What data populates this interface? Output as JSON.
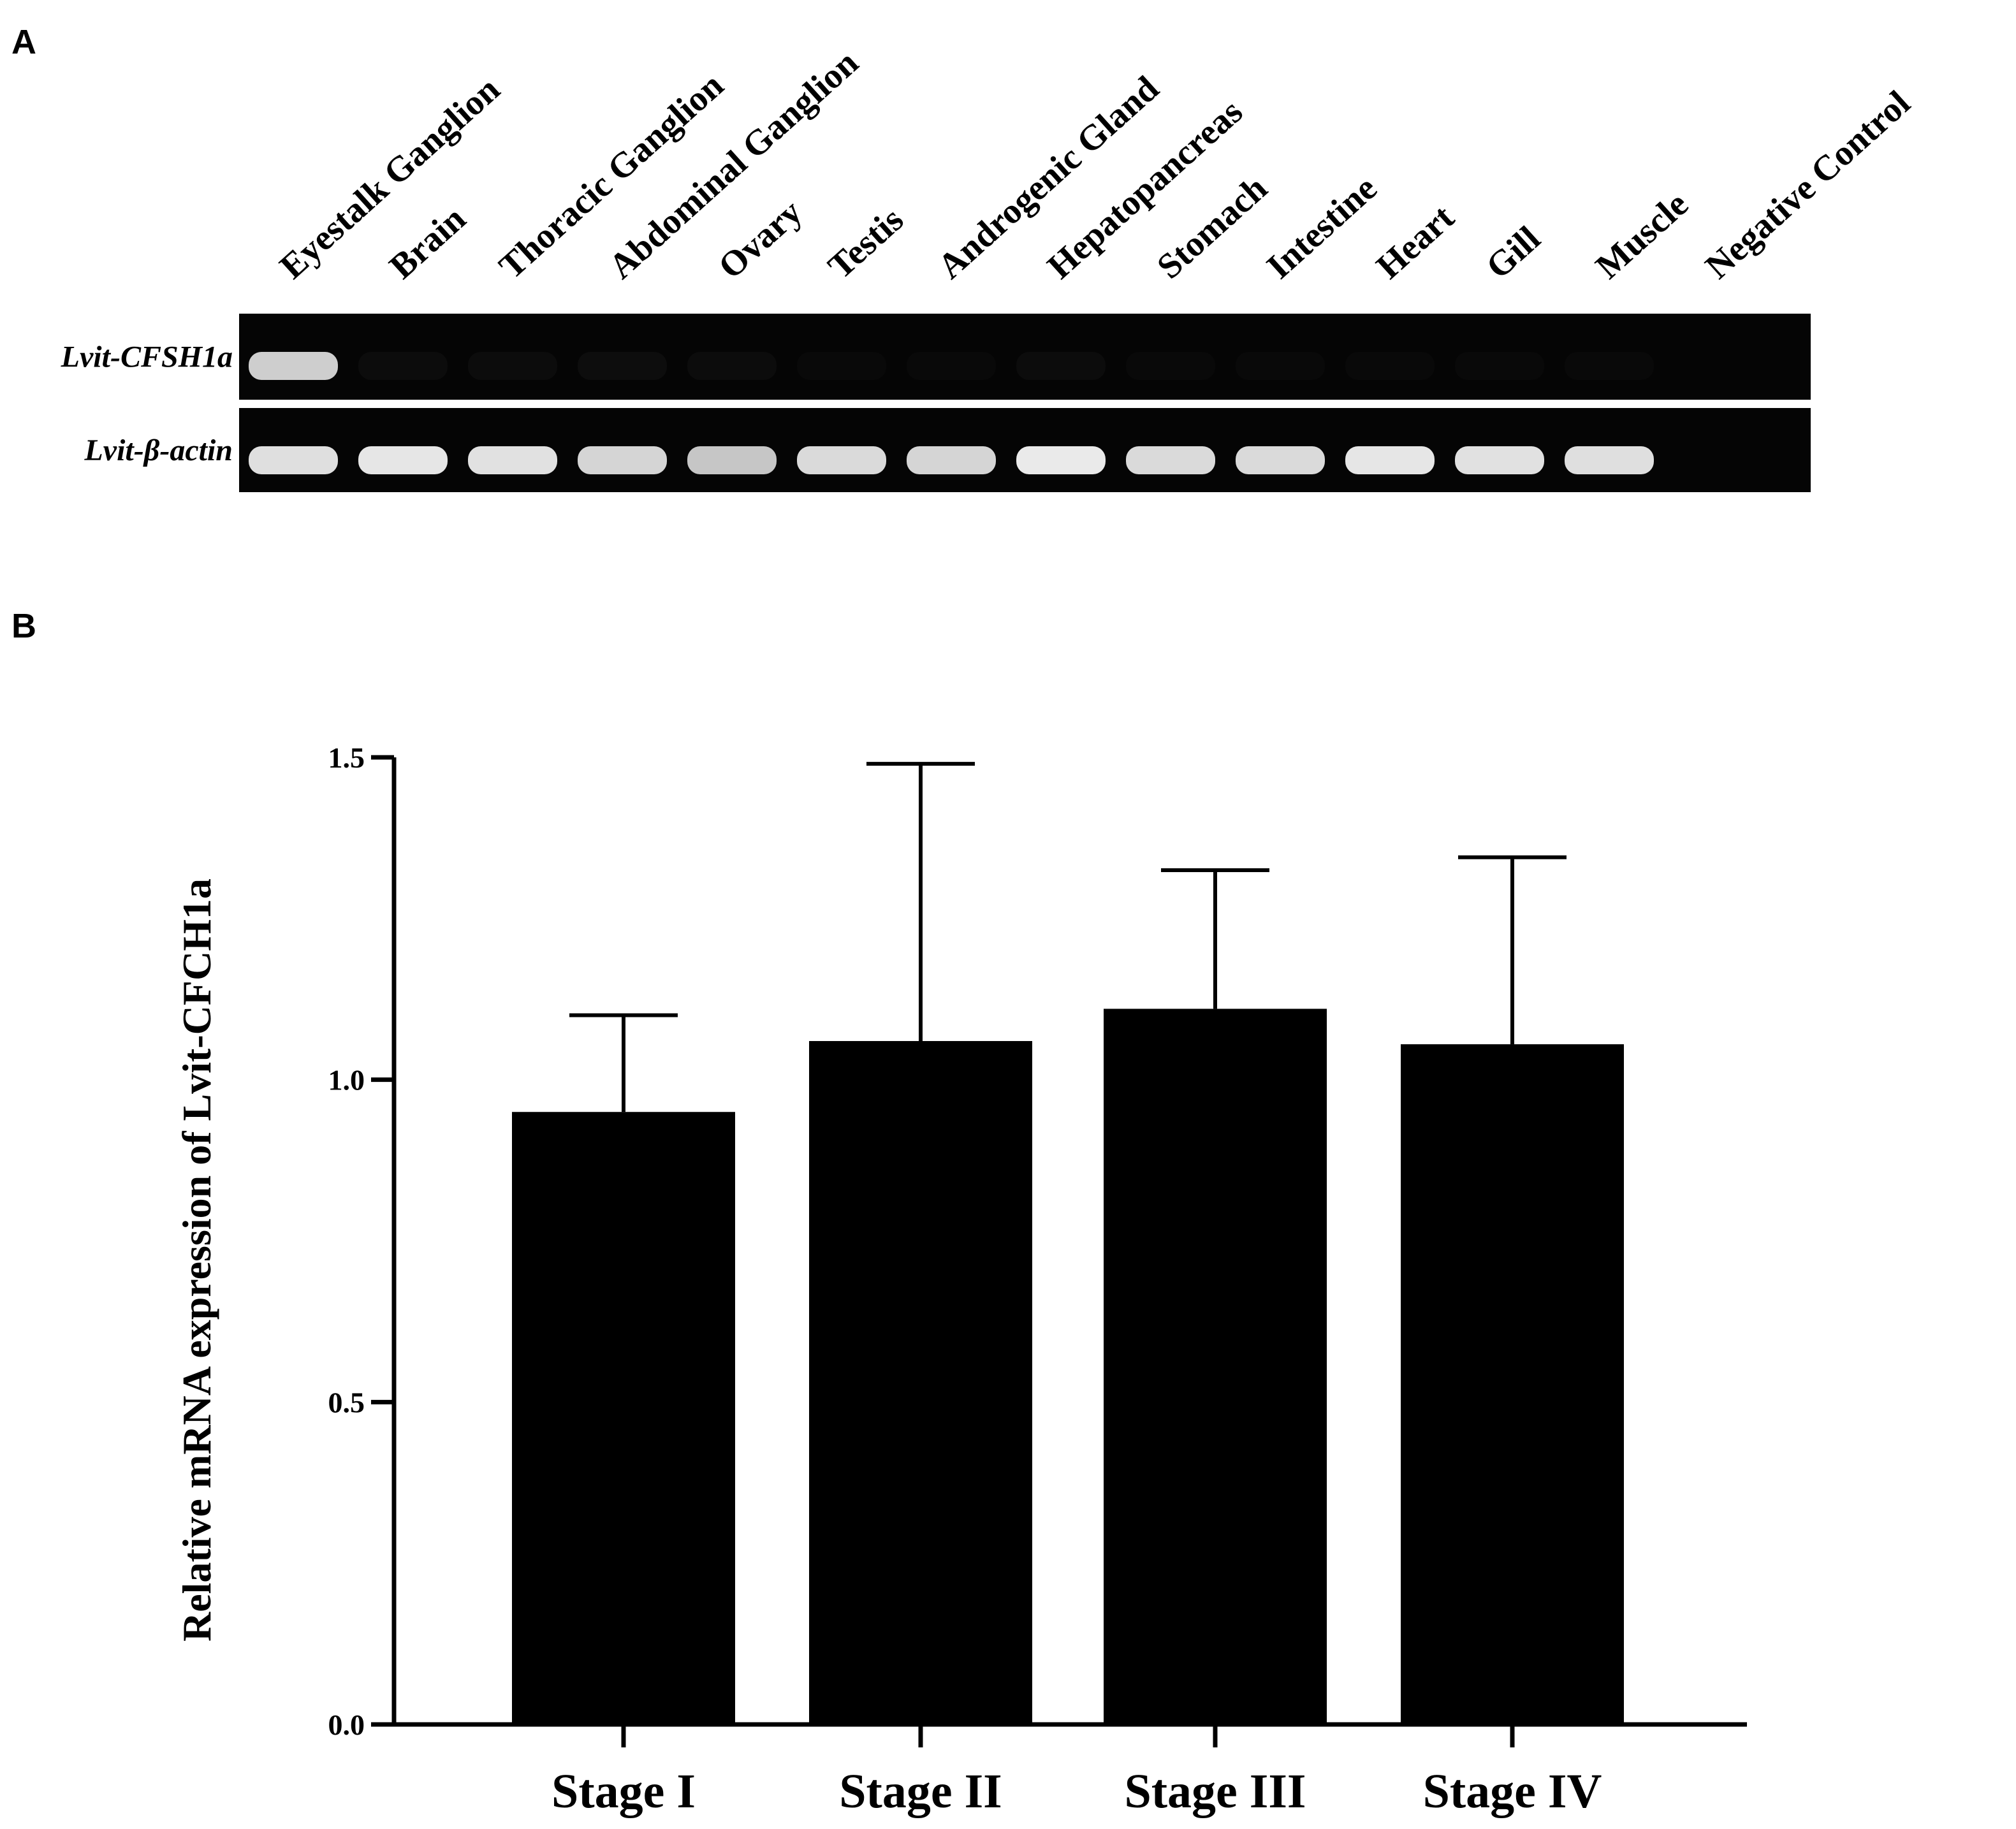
{
  "panel_a": {
    "letter": "A",
    "lanes": [
      "Eyestalk Ganglion",
      "Brain",
      "Thoracic Ganglion",
      "Abdominal Ganglion",
      "Ovary",
      "Testis",
      "Androgenic Gland",
      "Hepatopancreas",
      "Stomach",
      "Intestine",
      "Heart",
      "Gill",
      "Muscle",
      "Negative Control"
    ],
    "rows": [
      {
        "label": "Lvit-CFSH1a",
        "bands": [
          0.85,
          0.03,
          0.03,
          0.04,
          0.03,
          0.02,
          0.02,
          0.03,
          0.02,
          0.02,
          0.02,
          0.02,
          0.02,
          0
        ]
      },
      {
        "label": "Lvit-β-actin",
        "bands": [
          0.92,
          0.95,
          0.93,
          0.88,
          0.82,
          0.9,
          0.88,
          0.97,
          0.9,
          0.9,
          0.95,
          0.93,
          0.92,
          0
        ]
      }
    ],
    "gel_color": "#050505",
    "band_color": "#f2f2f2"
  },
  "panel_b": {
    "letter": "B"
  },
  "chart_data": {
    "type": "bar",
    "categories": [
      "Stage I",
      "Stage II",
      "Stage III",
      "Stage IV"
    ],
    "values": [
      0.95,
      1.06,
      1.11,
      1.055
    ],
    "errors_upper": [
      1.1,
      1.49,
      1.325,
      1.345
    ],
    "ylabel": "Relative mRNA expression of Lvit-CFCH1a",
    "ylim": [
      0,
      1.5
    ],
    "yticks": [
      "0.0",
      "0.5",
      "1.0",
      "1.5"
    ],
    "bar_color": "#000000",
    "grid": false,
    "legend": "none"
  }
}
